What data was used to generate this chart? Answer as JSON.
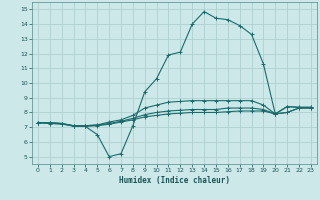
{
  "xlabel": "Humidex (Indice chaleur)",
  "bg_color": "#cce8e8",
  "grid_color": "#aacccc",
  "line_color": "#1a6b6b",
  "x_ticks": [
    0,
    1,
    2,
    3,
    4,
    5,
    6,
    7,
    8,
    9,
    10,
    11,
    12,
    13,
    14,
    15,
    16,
    17,
    18,
    19,
    20,
    21,
    22,
    23
  ],
  "y_ticks": [
    5,
    6,
    7,
    8,
    9,
    10,
    11,
    12,
    13,
    14,
    15
  ],
  "xlim": [
    -0.5,
    23.5
  ],
  "ylim": [
    4.5,
    15.5
  ],
  "line1_x": [
    0,
    1,
    2,
    3,
    4,
    5,
    6,
    7,
    8,
    9,
    10,
    11,
    12,
    13,
    14,
    15,
    16,
    17,
    18,
    19,
    20,
    21,
    22,
    23
  ],
  "line1_y": [
    7.3,
    7.25,
    7.2,
    7.1,
    7.05,
    6.5,
    5.0,
    5.2,
    7.1,
    9.4,
    10.3,
    11.9,
    12.1,
    14.0,
    14.85,
    14.4,
    14.3,
    13.9,
    13.3,
    11.3,
    7.9,
    8.4,
    8.35,
    8.35
  ],
  "line2_x": [
    0,
    1,
    2,
    3,
    4,
    5,
    6,
    7,
    8,
    9,
    10,
    11,
    12,
    13,
    14,
    15,
    16,
    17,
    18,
    19,
    20,
    21,
    22,
    23
  ],
  "line2_y": [
    7.3,
    7.3,
    7.25,
    7.1,
    7.1,
    7.15,
    7.35,
    7.5,
    7.8,
    8.3,
    8.5,
    8.7,
    8.75,
    8.8,
    8.8,
    8.8,
    8.8,
    8.8,
    8.8,
    8.5,
    7.9,
    8.4,
    8.35,
    8.35
  ],
  "line3_x": [
    0,
    1,
    2,
    3,
    4,
    5,
    6,
    7,
    8,
    9,
    10,
    11,
    12,
    13,
    14,
    15,
    16,
    17,
    18,
    19,
    20,
    21,
    22,
    23
  ],
  "line3_y": [
    7.3,
    7.3,
    7.25,
    7.1,
    7.1,
    7.15,
    7.25,
    7.4,
    7.6,
    7.85,
    8.0,
    8.1,
    8.15,
    8.2,
    8.2,
    8.2,
    8.3,
    8.3,
    8.3,
    8.2,
    7.9,
    8.0,
    8.3,
    8.3
  ],
  "line4_x": [
    0,
    1,
    2,
    3,
    4,
    5,
    6,
    7,
    8,
    9,
    10,
    11,
    12,
    13,
    14,
    15,
    16,
    17,
    18,
    19,
    20,
    21,
    22,
    23
  ],
  "line4_y": [
    7.3,
    7.3,
    7.25,
    7.05,
    7.05,
    7.1,
    7.2,
    7.35,
    7.5,
    7.7,
    7.8,
    7.9,
    7.95,
    8.0,
    8.0,
    8.0,
    8.05,
    8.1,
    8.1,
    8.1,
    7.9,
    8.0,
    8.3,
    8.3
  ]
}
